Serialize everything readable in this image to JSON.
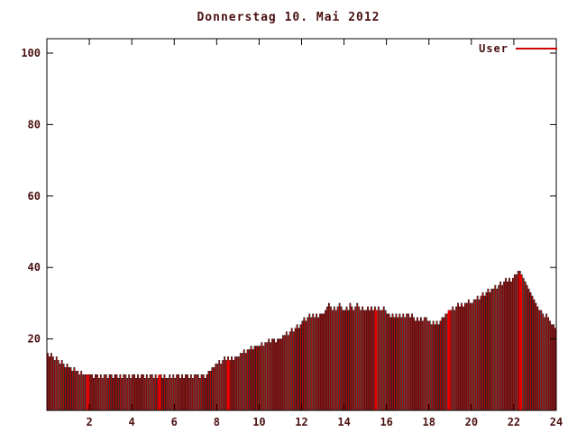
{
  "title": "Donnerstag 10. Mai 2012",
  "legend": {
    "label": "User",
    "color": "#cc0000"
  },
  "colors": {
    "background": "#ffffff",
    "axis": "#000000",
    "text": "#4a1010",
    "bar_fill": "#e80000",
    "bar_edge": "#111111"
  },
  "chart_data": {
    "type": "bar",
    "title": "Donnerstag 10. Mai 2012",
    "xlabel": "",
    "ylabel": "",
    "xlim": [
      0,
      24
    ],
    "ylim": [
      0,
      100
    ],
    "x_ticks": [
      2,
      4,
      6,
      8,
      10,
      12,
      14,
      16,
      18,
      20,
      22,
      24
    ],
    "y_ticks": [
      20,
      40,
      60,
      80,
      100
    ],
    "grid": false,
    "legend_entries": [
      "User"
    ],
    "legend_position": "top-right",
    "interval_minutes": 5,
    "emphasis_hours": [
      1.93,
      5.3,
      8.55,
      15.5,
      18.95,
      22.3
    ],
    "series": [
      {
        "name": "User",
        "values": [
          16,
          15,
          16,
          15,
          14,
          15,
          14,
          13,
          14,
          13,
          12,
          13,
          12,
          12,
          11,
          12,
          11,
          11,
          10,
          11,
          10,
          10,
          10,
          10,
          10,
          10,
          9,
          10,
          10,
          9,
          10,
          9,
          10,
          10,
          9,
          10,
          10,
          9,
          10,
          10,
          9,
          10,
          9,
          10,
          10,
          9,
          10,
          9,
          10,
          10,
          9,
          10,
          9,
          10,
          10,
          9,
          10,
          9,
          10,
          10,
          9,
          10,
          9,
          9,
          10,
          9,
          10,
          9,
          9,
          10,
          9,
          10,
          9,
          10,
          10,
          9,
          10,
          9,
          10,
          10,
          9,
          10,
          9,
          10,
          10,
          10,
          9,
          10,
          10,
          9,
          10,
          11,
          11,
          12,
          12,
          13,
          13,
          14,
          13,
          14,
          15,
          14,
          15,
          14,
          15,
          14,
          15,
          15,
          15,
          16,
          16,
          17,
          16,
          17,
          17,
          18,
          17,
          18,
          18,
          18,
          18,
          19,
          18,
          19,
          19,
          20,
          19,
          20,
          20,
          19,
          20,
          20,
          20,
          21,
          21,
          22,
          21,
          22,
          23,
          22,
          23,
          24,
          23,
          24,
          25,
          26,
          25,
          26,
          27,
          26,
          27,
          26,
          27,
          26,
          27,
          27,
          27,
          28,
          29,
          30,
          29,
          28,
          29,
          28,
          29,
          30,
          29,
          28,
          28,
          29,
          28,
          30,
          29,
          28,
          29,
          30,
          29,
          28,
          29,
          28,
          28,
          29,
          28,
          29,
          28,
          29,
          28,
          29,
          28,
          28,
          29,
          28,
          27,
          27,
          26,
          27,
          26,
          27,
          26,
          27,
          26,
          27,
          26,
          27,
          27,
          26,
          27,
          26,
          25,
          26,
          25,
          26,
          25,
          26,
          26,
          25,
          25,
          24,
          25,
          24,
          25,
          24,
          25,
          26,
          26,
          27,
          27,
          28,
          28,
          29,
          28,
          29,
          30,
          29,
          30,
          29,
          30,
          30,
          31,
          30,
          30,
          31,
          31,
          32,
          31,
          32,
          33,
          32,
          33,
          34,
          33,
          34,
          34,
          35,
          34,
          35,
          36,
          35,
          36,
          37,
          36,
          37,
          36,
          37,
          38,
          38,
          39,
          39,
          38,
          37,
          36,
          35,
          34,
          33,
          32,
          31,
          30,
          29,
          28,
          28,
          27,
          26,
          27,
          26,
          25,
          24,
          24,
          23
        ]
      }
    ]
  }
}
